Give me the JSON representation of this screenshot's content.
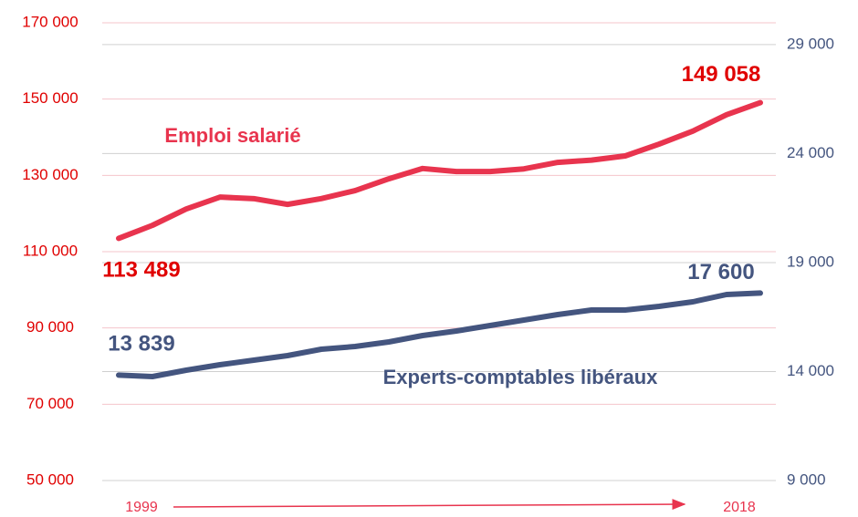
{
  "chart_data": {
    "type": "line",
    "categories": [
      "1999",
      null,
      null,
      null,
      null,
      null,
      null,
      null,
      null,
      null,
      null,
      null,
      null,
      null,
      null,
      null,
      null,
      null,
      null,
      "2018"
    ],
    "series": [
      {
        "name": "Emploi salarié",
        "color": "#e8344e",
        "axis": "y",
        "values": [
          113489,
          116900,
          121200,
          124300,
          123900,
          122400,
          123900,
          126000,
          129100,
          131800,
          131000,
          131000,
          131700,
          133400,
          134000,
          135100,
          138200,
          141600,
          145900,
          149058
        ],
        "value_labels": [
          "113 489",
          null,
          null,
          null,
          null,
          null,
          null,
          null,
          null,
          null,
          null,
          null,
          null,
          null,
          null,
          null,
          null,
          null,
          null,
          "149 058"
        ]
      },
      {
        "name": "Experts-comptables libéraux",
        "color": "#44557f",
        "axis": "y2",
        "values": [
          13839,
          13769,
          14062,
          14313,
          14522,
          14731,
          15024,
          15149,
          15359,
          15651,
          15861,
          16112,
          16363,
          16614,
          16823,
          16823,
          16990,
          17199,
          17534,
          17600
        ],
        "value_labels": [
          "13 839",
          null,
          null,
          null,
          null,
          null,
          null,
          null,
          null,
          null,
          null,
          null,
          null,
          null,
          null,
          null,
          null,
          null,
          null,
          "17 600"
        ]
      }
    ],
    "ylim": [
      50000,
      170000
    ],
    "yticks": [
      {
        "value": 50000,
        "label": "50 000"
      },
      {
        "value": 70000,
        "label": "70 000"
      },
      {
        "value": 90000,
        "label": "90 000"
      },
      {
        "value": 110000,
        "label": "110 000"
      },
      {
        "value": 130000,
        "label": "130 000"
      },
      {
        "value": 150000,
        "label": "150 000"
      },
      {
        "value": 170000,
        "label": "170 000"
      }
    ],
    "y2lim": [
      9000,
      30000
    ],
    "y2ticks": [
      {
        "value": 9000,
        "label": "9 000"
      },
      {
        "value": 14000,
        "label": "14 000"
      },
      {
        "value": 19000,
        "label": "19 000"
      },
      {
        "value": 24000,
        "label": "24 000"
      },
      {
        "value": 29000,
        "label": "29 000"
      }
    ],
    "grid": true
  }
}
